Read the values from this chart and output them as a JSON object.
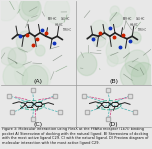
{
  "figure_bg": "#e8e8e8",
  "top_panel_bg": "#c8d8c8",
  "top_panel_bg2": "#ccd8cc",
  "bottom_panel_bg": "#f5f5f5",
  "caption_text": "Figure 3: Molecular interaction using FlexX at the PPARα receptor (1k7l) binding pocket A) Stereoview of docking with the natural ligand. B) Stereoview of docking with the most active ligand C29. C) with the natural ligand. D) Preview diagram of molecular interaction with the most active ligand C29.",
  "caption_fontsize": 2.5,
  "panel_labels": [
    "(A)",
    "(B)",
    "(C)",
    "(D)"
  ],
  "panel_label_fontsize": 4.5,
  "divider_color": "#999999",
  "text_color": "#111111",
  "mol_line_color": "#222222",
  "red_atom": "#cc2200",
  "blue_atom": "#1133bb",
  "teal_dash": "#009999",
  "pink_dash": "#cc3377",
  "green_blob": "#aaccaa",
  "caption_bg": "#e8e8e8"
}
